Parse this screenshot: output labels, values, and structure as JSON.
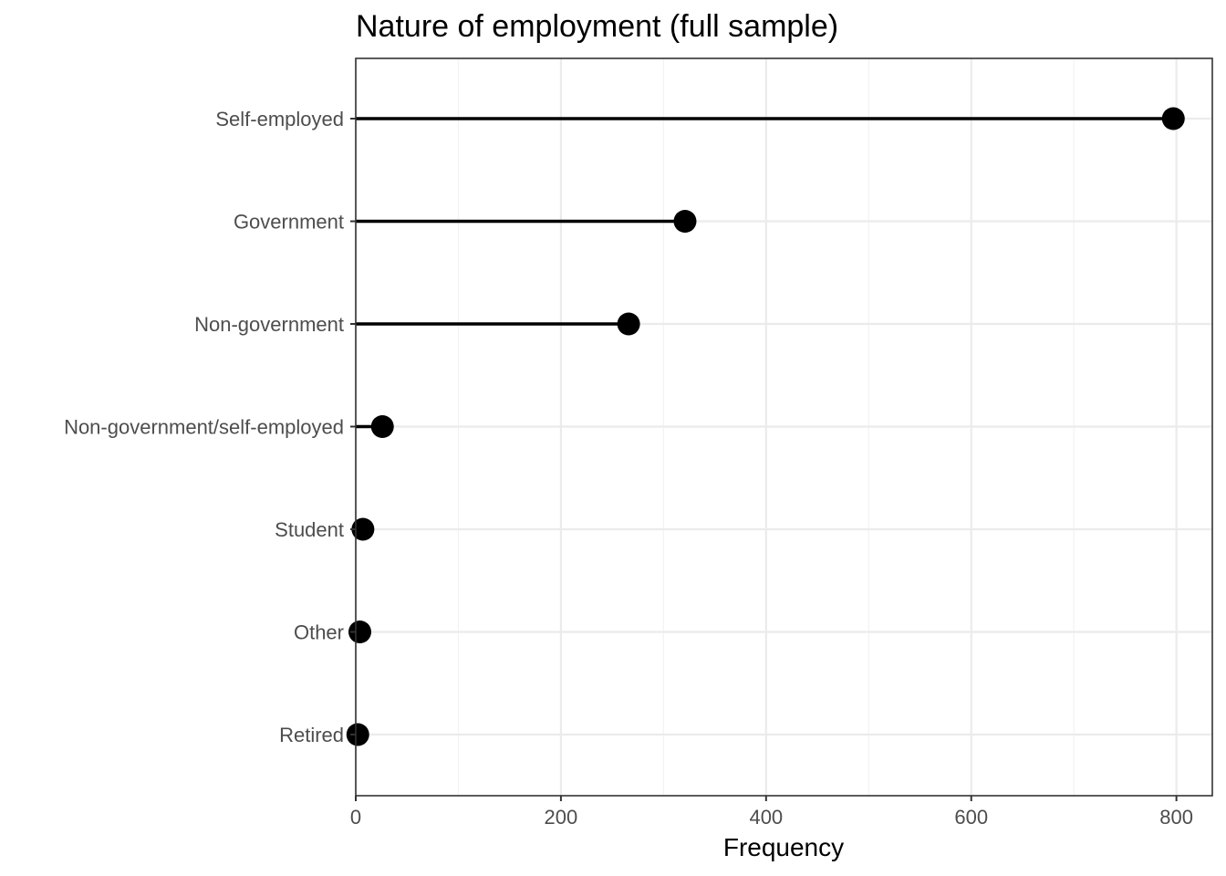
{
  "chart_data": {
    "type": "lollipop",
    "title": "Nature of employment (full sample)",
    "xlabel": "Frequency",
    "ylabel": "",
    "xlim": [
      0,
      835
    ],
    "x_ticks": [
      0,
      200,
      400,
      600,
      800
    ],
    "x_tick_labels": [
      "0",
      "200",
      "400",
      "600",
      "800"
    ],
    "x_minor_ticks": [
      100,
      300,
      500,
      700
    ],
    "grid": true,
    "legend": "none",
    "categories": [
      "Self-employed",
      "Government",
      "Non-government",
      "Non-government/self-employed",
      "Student",
      "Other",
      "Retired"
    ],
    "values": [
      797,
      321,
      266,
      26,
      7,
      4,
      2
    ],
    "colors": {
      "mark": "#000000",
      "grid": "#ebebeb",
      "text": "#4d4d4d"
    }
  }
}
